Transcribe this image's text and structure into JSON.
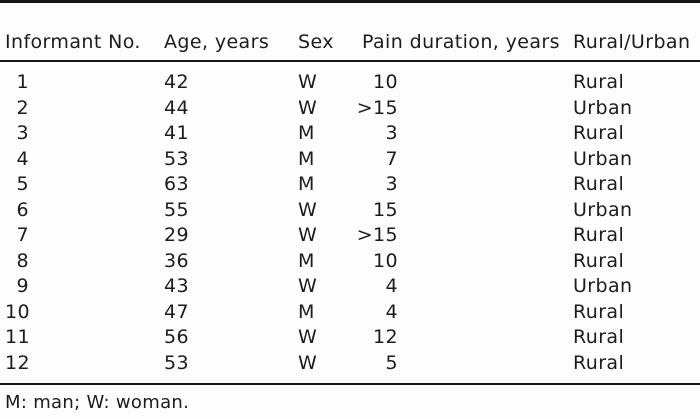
{
  "table": {
    "columns": [
      "Informant No.",
      "Age, years",
      "Sex",
      "Pain duration, years",
      "Rural/Urban"
    ],
    "rows": [
      {
        "informant_no": "1",
        "age": "42",
        "sex": "W",
        "pain_duration": "10",
        "rural_urban": "Rural"
      },
      {
        "informant_no": "2",
        "age": "44",
        "sex": "W",
        "pain_duration": ">15",
        "rural_urban": "Urban"
      },
      {
        "informant_no": "3",
        "age": "41",
        "sex": "M",
        "pain_duration": "3",
        "rural_urban": "Rural"
      },
      {
        "informant_no": "4",
        "age": "53",
        "sex": "M",
        "pain_duration": "7",
        "rural_urban": "Urban"
      },
      {
        "informant_no": "5",
        "age": "63",
        "sex": "M",
        "pain_duration": "3",
        "rural_urban": "Rural"
      },
      {
        "informant_no": "6",
        "age": "55",
        "sex": "W",
        "pain_duration": "15",
        "rural_urban": "Urban"
      },
      {
        "informant_no": "7",
        "age": "29",
        "sex": "W",
        "pain_duration": ">15",
        "rural_urban": "Rural"
      },
      {
        "informant_no": "8",
        "age": "36",
        "sex": "M",
        "pain_duration": "10",
        "rural_urban": "Rural"
      },
      {
        "informant_no": "9",
        "age": "43",
        "sex": "W",
        "pain_duration": "4",
        "rural_urban": "Urban"
      },
      {
        "informant_no": "10",
        "age": "47",
        "sex": "M",
        "pain_duration": "4",
        "rural_urban": "Rural"
      },
      {
        "informant_no": "11",
        "age": "56",
        "sex": "W",
        "pain_duration": "12",
        "rural_urban": "Rural"
      },
      {
        "informant_no": "12",
        "age": "53",
        "sex": "W",
        "pain_duration": "5",
        "rural_urban": "Rural"
      }
    ],
    "footnote": "M: man; W: woman."
  },
  "colors": {
    "text": "#1c1c1c",
    "rule": "#161616",
    "background": "#fdfdfd"
  }
}
